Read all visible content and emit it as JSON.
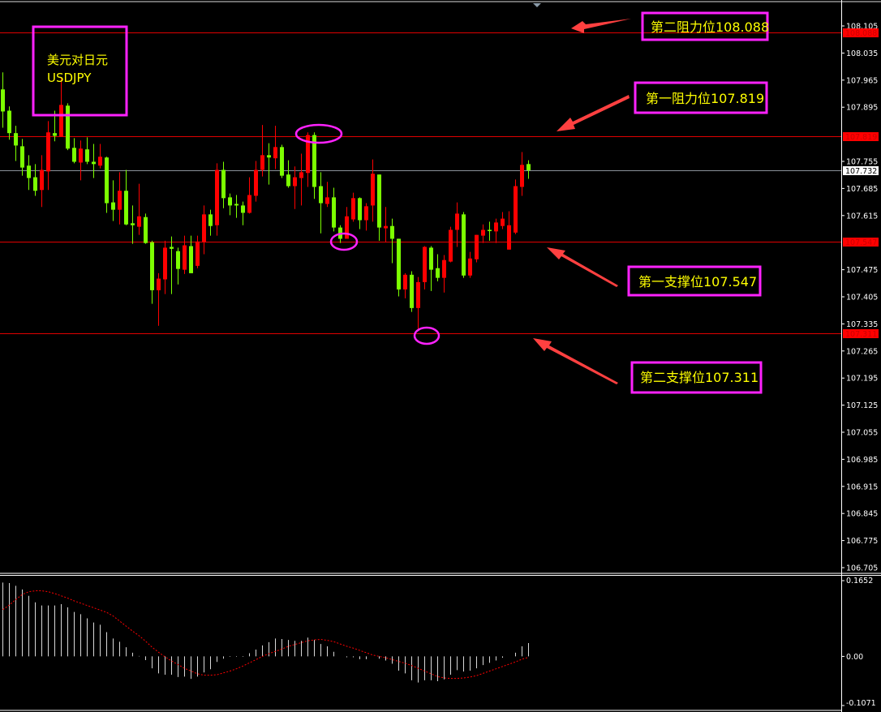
{
  "chart_data": {
    "type": "candlestick",
    "symbol_label": "美元对日元",
    "symbol_code": "USDJPY",
    "colors": {
      "up": "#ff0000",
      "down": "#7cff00",
      "level_line": "#e00000",
      "current_line": "#8a9199",
      "annotation_box": "#ff22ff",
      "annotation_text": "#ffff00",
      "arrow": "#ff4040",
      "macd_hist": "#d8d8d8",
      "macd_signal": "#ff0000"
    },
    "price_axis": {
      "ylim": [
        106.705,
        108.105
      ],
      "ticks": [
        "108.105",
        "108.035",
        "107.965",
        "107.895",
        "107.755",
        "107.685",
        "107.615",
        "107.475",
        "107.405",
        "107.335",
        "107.265",
        "107.195",
        "107.125",
        "107.055",
        "106.985",
        "106.915",
        "106.845",
        "106.775",
        "106.705"
      ]
    },
    "current_price": "107.732",
    "levels": [
      {
        "value": "108.088",
        "label": "第二阻力位108.088"
      },
      {
        "value": "107.819",
        "label": "第一阻力位107.819"
      },
      {
        "value": "107.547",
        "label": "第一支撑位107.547"
      },
      {
        "value": "107.311",
        "label": "第二支撑位107.311"
      }
    ],
    "candles_ohlc": [
      [
        107.941,
        107.985,
        107.842,
        107.884
      ],
      [
        107.886,
        107.897,
        107.811,
        107.828
      ],
      [
        107.828,
        107.847,
        107.756,
        107.796
      ],
      [
        107.794,
        107.813,
        107.718,
        107.739
      ],
      [
        107.744,
        107.771,
        107.681,
        107.712
      ],
      [
        107.714,
        107.748,
        107.666,
        107.679
      ],
      [
        107.681,
        107.771,
        107.637,
        107.733
      ],
      [
        107.729,
        107.859,
        107.681,
        107.83
      ],
      [
        107.828,
        107.886,
        107.807,
        107.821
      ],
      [
        107.819,
        107.973,
        107.819,
        107.901
      ],
      [
        107.899,
        107.905,
        107.784,
        107.788
      ],
      [
        107.79,
        107.815,
        107.75,
        107.754
      ],
      [
        107.752,
        107.809,
        107.706,
        107.788
      ],
      [
        107.786,
        107.817,
        107.748,
        107.754
      ],
      [
        107.754,
        107.8,
        107.712,
        107.748
      ],
      [
        107.744,
        107.8,
        107.737,
        107.767
      ],
      [
        107.765,
        107.767,
        107.622,
        107.647
      ],
      [
        107.649,
        107.706,
        107.601,
        107.63
      ],
      [
        107.63,
        107.727,
        107.592,
        107.679
      ],
      [
        107.679,
        107.733,
        107.59,
        107.592
      ],
      [
        107.595,
        107.641,
        107.542,
        107.59
      ],
      [
        107.586,
        107.697,
        107.565,
        107.613
      ],
      [
        107.611,
        107.62,
        107.542,
        107.544
      ],
      [
        107.546,
        107.55,
        107.387,
        107.422
      ],
      [
        107.422,
        107.466,
        107.33,
        107.452
      ],
      [
        107.45,
        107.55,
        107.412,
        107.532
      ],
      [
        107.534,
        107.561,
        107.412,
        107.529
      ],
      [
        107.523,
        107.532,
        107.437,
        107.477
      ],
      [
        107.475,
        107.563,
        107.464,
        107.538
      ],
      [
        107.536,
        107.563,
        107.466,
        107.466
      ],
      [
        107.485,
        107.563,
        107.479,
        107.548
      ],
      [
        107.546,
        107.641,
        107.515,
        107.618
      ],
      [
        107.618,
        107.63,
        107.563,
        107.588
      ],
      [
        107.59,
        107.75,
        107.563,
        107.733
      ],
      [
        107.733,
        107.754,
        107.634,
        107.66
      ],
      [
        107.662,
        107.672,
        107.616,
        107.641
      ],
      [
        107.645,
        107.668,
        107.609,
        107.641
      ],
      [
        107.641,
        107.651,
        107.59,
        107.622
      ],
      [
        107.622,
        107.714,
        107.62,
        107.668
      ],
      [
        107.666,
        107.756,
        107.651,
        107.733
      ],
      [
        107.733,
        107.849,
        107.716,
        107.771
      ],
      [
        107.771,
        107.802,
        107.695,
        107.765
      ],
      [
        107.763,
        107.847,
        107.735,
        107.792
      ],
      [
        107.792,
        107.798,
        107.712,
        107.718
      ],
      [
        107.721,
        107.758,
        107.687,
        107.691
      ],
      [
        107.691,
        107.742,
        107.632,
        107.714
      ],
      [
        107.712,
        107.775,
        107.641,
        107.727
      ],
      [
        107.725,
        107.83,
        107.689,
        107.823
      ],
      [
        107.823,
        107.83,
        107.658,
        107.689
      ],
      [
        107.691,
        107.727,
        107.569,
        107.647
      ],
      [
        107.645,
        107.702,
        107.637,
        107.662
      ],
      [
        107.662,
        107.687,
        107.574,
        107.584
      ],
      [
        107.584,
        107.59,
        107.544,
        107.555
      ],
      [
        107.555,
        107.637,
        107.555,
        107.613
      ],
      [
        107.605,
        107.674,
        107.599,
        107.66
      ],
      [
        107.66,
        107.662,
        107.58,
        107.603
      ],
      [
        107.603,
        107.647,
        107.576,
        107.639
      ],
      [
        107.641,
        107.76,
        107.599,
        107.723
      ],
      [
        107.721,
        107.721,
        107.55,
        107.584
      ],
      [
        107.582,
        107.637,
        107.546,
        107.588
      ],
      [
        107.588,
        107.607,
        107.492,
        107.555
      ],
      [
        107.555,
        107.555,
        107.406,
        107.424
      ],
      [
        107.424,
        107.466,
        107.401,
        107.462
      ],
      [
        107.462,
        107.471,
        107.366,
        107.376
      ],
      [
        107.376,
        107.456,
        107.317,
        107.443
      ],
      [
        107.443,
        107.536,
        107.424,
        107.534
      ],
      [
        107.532,
        107.536,
        107.42,
        107.475
      ],
      [
        107.479,
        107.515,
        107.445,
        107.454
      ],
      [
        107.454,
        107.513,
        107.416,
        107.5
      ],
      [
        107.496,
        107.586,
        107.494,
        107.578
      ],
      [
        107.578,
        107.649,
        107.534,
        107.62
      ],
      [
        107.618,
        107.624,
        107.454,
        107.46
      ],
      [
        107.46,
        107.521,
        107.454,
        107.504
      ],
      [
        107.502,
        107.565,
        107.494,
        107.565
      ],
      [
        107.563,
        107.592,
        107.544,
        107.578
      ],
      [
        107.578,
        107.599,
        107.55,
        107.576
      ],
      [
        107.574,
        107.607,
        107.544,
        107.597
      ],
      [
        107.588,
        107.624,
        107.58,
        107.607
      ],
      [
        107.527,
        107.626,
        107.527,
        107.59
      ],
      [
        107.571,
        107.708,
        107.567,
        107.691
      ],
      [
        107.689,
        107.779,
        107.666,
        107.746
      ],
      [
        107.748,
        107.758,
        107.71,
        107.732
      ]
    ],
    "macd": {
      "ylim": [
        -0.1071,
        0.1652
      ],
      "ticks": [
        "0.1652",
        "0.00",
        "-0.1071"
      ],
      "histogram": [
        0.161,
        0.16,
        0.154,
        0.146,
        0.132,
        0.118,
        0.111,
        0.111,
        0.111,
        0.114,
        0.107,
        0.097,
        0.092,
        0.083,
        0.074,
        0.069,
        0.053,
        0.039,
        0.032,
        0.02,
        0.008,
        0.001,
        -0.008,
        -0.026,
        -0.037,
        -0.04,
        -0.04,
        -0.045,
        -0.044,
        -0.049,
        -0.044,
        -0.035,
        -0.028,
        -0.012,
        -0.005,
        -0.001,
        -0.001,
        -0.001,
        0.007,
        0.015,
        0.024,
        0.031,
        0.039,
        0.038,
        0.036,
        0.034,
        0.034,
        0.041,
        0.036,
        0.027,
        0.022,
        0.01,
        0,
        -0.002,
        -0.002,
        -0.006,
        -0.006,
        0,
        -0.005,
        -0.009,
        -0.016,
        -0.031,
        -0.037,
        -0.052,
        -0.057,
        -0.052,
        -0.052,
        -0.054,
        -0.05,
        -0.04,
        -0.03,
        -0.033,
        -0.031,
        -0.026,
        -0.019,
        -0.014,
        -0.009,
        -0.003,
        0,
        0.008,
        0.022,
        0.029
      ],
      "signal": [
        0.102,
        0.112,
        0.124,
        0.135,
        0.141,
        0.143,
        0.143,
        0.141,
        0.137,
        0.132,
        0.127,
        0.121,
        0.116,
        0.111,
        0.106,
        0.101,
        0.096,
        0.088,
        0.077,
        0.066,
        0.055,
        0.045,
        0.033,
        0.02,
        0.009,
        -0.001,
        -0.01,
        -0.018,
        -0.026,
        -0.032,
        -0.038,
        -0.041,
        -0.041,
        -0.04,
        -0.036,
        -0.032,
        -0.027,
        -0.021,
        -0.014,
        -0.007,
        0.0,
        0.006,
        0.011,
        0.016,
        0.022,
        0.026,
        0.03,
        0.034,
        0.036,
        0.037,
        0.035,
        0.032,
        0.027,
        0.022,
        0.018,
        0.013,
        0.008,
        0.003,
        0.0,
        -0.003,
        -0.007,
        -0.011,
        -0.015,
        -0.02,
        -0.026,
        -0.032,
        -0.038,
        -0.044,
        -0.047,
        -0.048,
        -0.048,
        -0.047,
        -0.045,
        -0.042,
        -0.037,
        -0.032,
        -0.027,
        -0.022,
        -0.017,
        -0.012,
        -0.006,
        -0.002
      ]
    }
  }
}
